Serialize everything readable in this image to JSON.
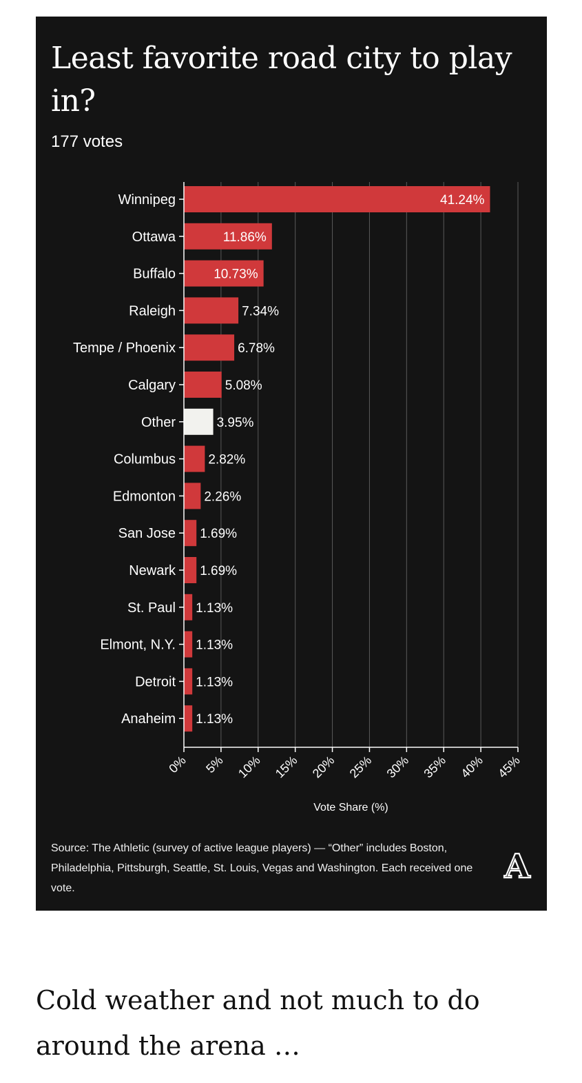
{
  "header": {
    "title": "Least favorite road city to play in?",
    "subtitle": "177 votes"
  },
  "chart_data": {
    "type": "bar",
    "orientation": "horizontal",
    "categories": [
      "Winnipeg",
      "Ottawa",
      "Buffalo",
      "Raleigh",
      "Tempe / Phoenix",
      "Calgary",
      "Other",
      "Columbus",
      "Edmonton",
      "San Jose",
      "Newark",
      "St. Paul",
      "Elmont, N.Y.",
      "Detroit",
      "Anaheim"
    ],
    "values": [
      41.24,
      11.86,
      10.73,
      7.34,
      6.78,
      5.08,
      3.95,
      2.82,
      2.26,
      1.69,
      1.69,
      1.13,
      1.13,
      1.13,
      1.13
    ],
    "value_labels": [
      "41.24%",
      "11.86%",
      "10.73%",
      "7.34%",
      "6.78%",
      "5.08%",
      "3.95%",
      "2.82%",
      "2.26%",
      "1.69%",
      "1.69%",
      "1.13%",
      "1.13%",
      "1.13%",
      "1.13%"
    ],
    "highlight_category": "Other",
    "xlabel": "Vote Share (%)",
    "ylabel": "",
    "xlim": [
      0,
      45
    ],
    "xticks": [
      0,
      5,
      10,
      15,
      20,
      25,
      30,
      35,
      40,
      45
    ],
    "xtick_labels": [
      "0%",
      "5%",
      "10%",
      "15%",
      "20%",
      "25%",
      "30%",
      "35%",
      "40%",
      "45%"
    ],
    "grid": "vertical",
    "colors": {
      "bar": "#d0393b",
      "highlight": "#f2f2ee",
      "background": "#141414",
      "grid": "#5a5a5a",
      "text": "#ffffff"
    }
  },
  "footer": {
    "source": "Source: The Athletic (survey of active league players) — “Other” includes Boston, Philadelphia, Pittsburgh, Seattle, St. Louis, Vegas and Washington. Each received one vote.",
    "logo_letter": "A"
  },
  "caption": "Cold weather and not much to do around the arena …"
}
